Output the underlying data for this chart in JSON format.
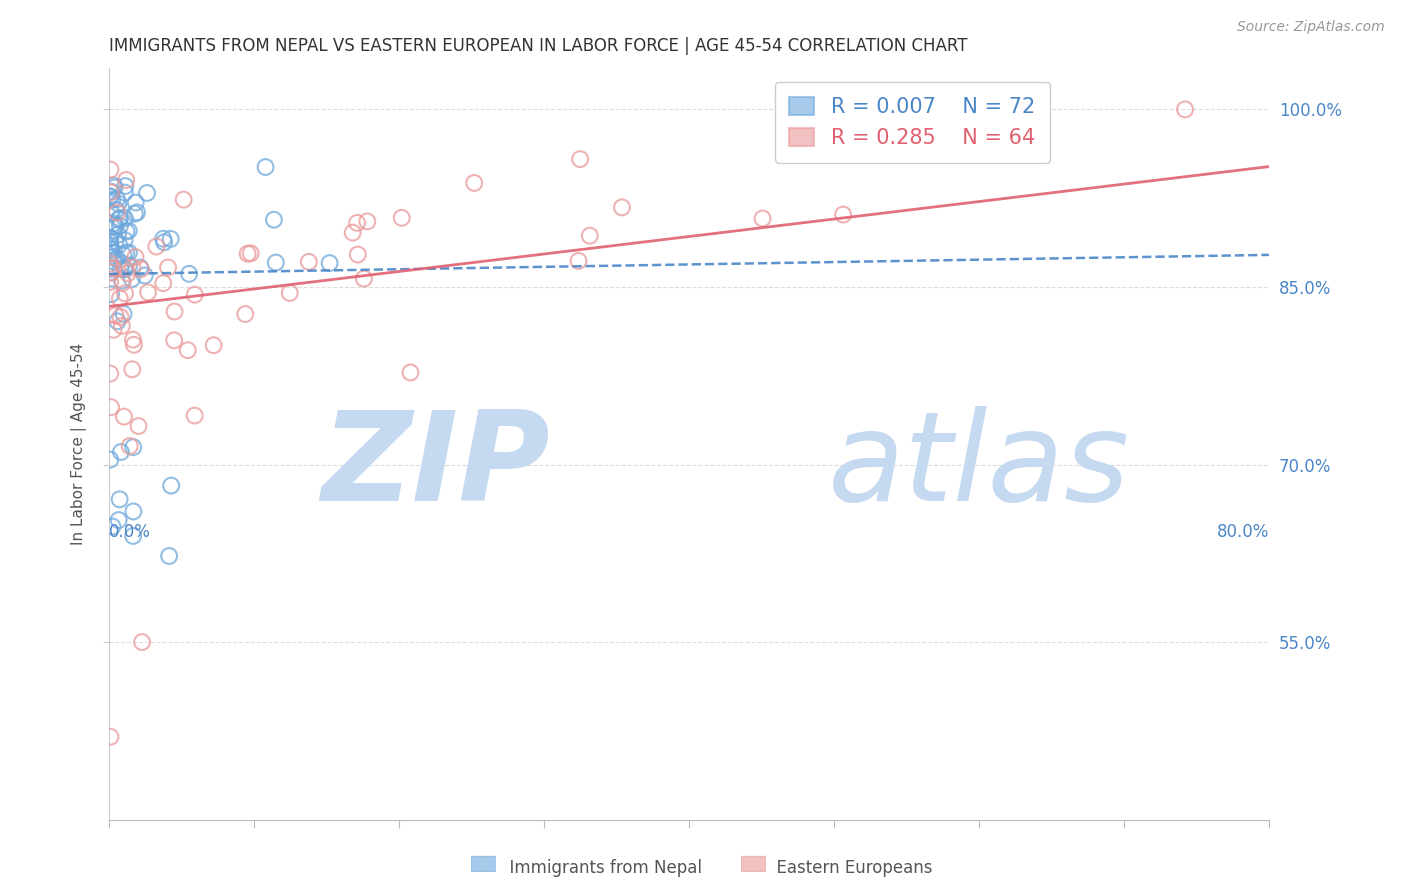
{
  "title": "IMMIGRANTS FROM NEPAL VS EASTERN EUROPEAN IN LABOR FORCE | AGE 45-54 CORRELATION CHART",
  "source": "Source: ZipAtlas.com",
  "ylabel": "In Labor Force | Age 45-54",
  "legend_label_nepal": "Immigrants from Nepal",
  "legend_label_eastern": "Eastern Europeans",
  "r_nepal": 0.007,
  "n_nepal": 72,
  "r_eastern": 0.285,
  "n_eastern": 64,
  "xlim": [
    0.0,
    0.8
  ],
  "ylim": [
    0.4,
    1.035
  ],
  "yticks": [
    0.55,
    0.7,
    0.85,
    1.0
  ],
  "yticklabels": [
    "55.0%",
    "70.0%",
    "85.0%",
    "100.0%"
  ],
  "color_nepal": "#6fa8dc",
  "color_eastern": "#ea9999",
  "color_nepal_line": "#4a86c8",
  "color_eastern_line": "#e06070",
  "color_axis_labels": "#4a86c8",
  "background_color": "#ffffff",
  "grid_color": "#dddddd",
  "title_color": "#333333",
  "watermark_zip": "ZIP",
  "watermark_atlas": "atlas",
  "watermark_color_zip": "#c5d9f0",
  "watermark_color_atlas": "#c5d9f0"
}
